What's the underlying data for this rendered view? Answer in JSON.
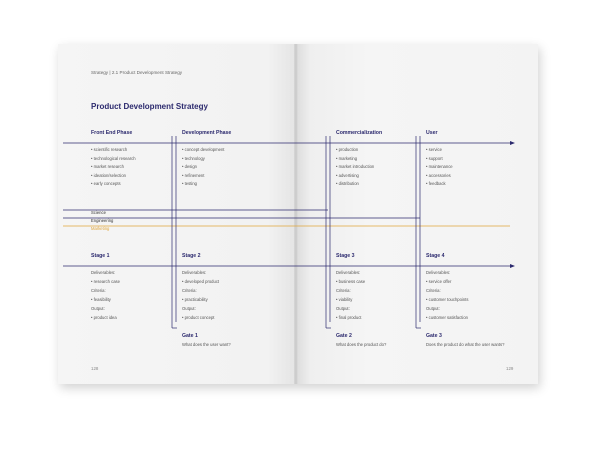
{
  "breadcrumb": "Strategy | 2.1 Product Development Strategy",
  "title": "Product Development Strategy",
  "phases": [
    {
      "label": "Front End Phase",
      "items": [
        "scientific research",
        "technological research",
        "market research",
        "ideation/selection",
        "early concepts"
      ]
    },
    {
      "label": "Development Phase",
      "items": [
        "concept development",
        "technology",
        "design",
        "refinement",
        "testing"
      ]
    },
    {
      "label": "Commercialization",
      "items": [
        "production",
        "marketing",
        "market introduction",
        "advertising",
        "distribution"
      ]
    },
    {
      "label": "User",
      "items": [
        "service",
        "support",
        "maintenance",
        "accessories",
        "feedback"
      ]
    }
  ],
  "bands": [
    "Science",
    "Engineering",
    "Marketing"
  ],
  "stages": [
    {
      "label": "Stage 1",
      "deliverables_label": "Deliverables:",
      "deliverable": "research case",
      "criteria_label": "Criteria:",
      "criteria": "feasibility",
      "output_label": "Output:",
      "output": "product idea"
    },
    {
      "label": "Stage 2",
      "deliverables_label": "Deliverables:",
      "deliverable": "developed product",
      "criteria_label": "Criteria:",
      "criteria": "practicability",
      "output_label": "Output:",
      "output": "product concept"
    },
    {
      "label": "Stage 3",
      "deliverables_label": "Deliverables:",
      "deliverable": "business case",
      "criteria_label": "Criteria:",
      "criteria": "viability",
      "output_label": "Output:",
      "output": "final product"
    },
    {
      "label": "Stage 4",
      "deliverables_label": "Deliverables:",
      "deliverable": "service offer",
      "criteria_label": "Criteria:",
      "criteria": "customer touchpoints",
      "output_label": "Output:",
      "output": "customer satisfaction"
    }
  ],
  "gates": [
    {
      "label": "Gate 1",
      "question": "What does the user want?"
    },
    {
      "label": "Gate 2",
      "question": "What does the product do?"
    },
    {
      "label": "Gate 3",
      "question": "Does the product do what the user wants?"
    }
  ],
  "page_numbers": {
    "left": "128",
    "right": "129"
  },
  "colors": {
    "navy": "#2c2a6e",
    "marketing": "#e0a63a",
    "paper": "#f4f4f4"
  }
}
